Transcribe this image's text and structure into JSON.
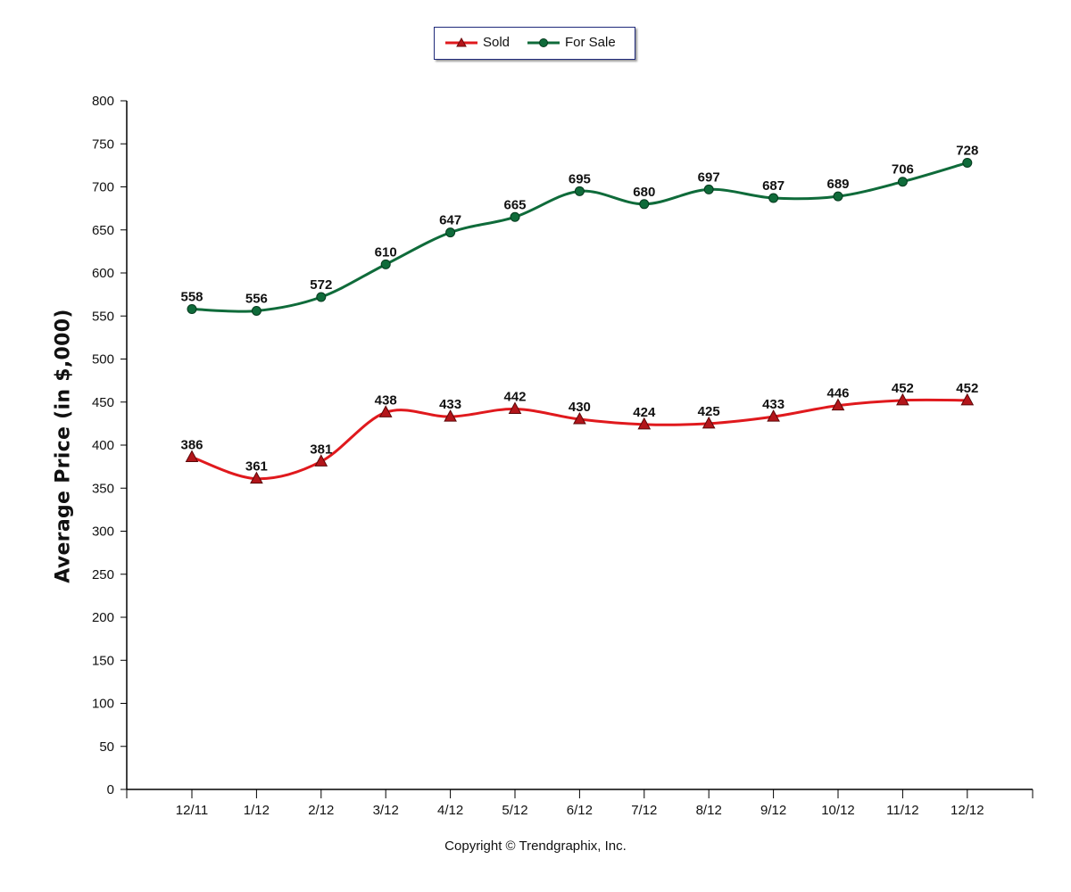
{
  "chart_data": {
    "type": "line",
    "categories": [
      "12/11",
      "1/12",
      "2/12",
      "3/12",
      "4/12",
      "5/12",
      "6/12",
      "7/12",
      "8/12",
      "9/12",
      "10/12",
      "11/12",
      "12/12"
    ],
    "series": [
      {
        "name": "Sold",
        "color": "#e0191d",
        "marker": "triangle",
        "values": [
          386,
          361,
          381,
          438,
          433,
          442,
          430,
          424,
          425,
          433,
          446,
          452,
          452
        ]
      },
      {
        "name": "For Sale",
        "color": "#0f6b3a",
        "marker": "circle",
        "values": [
          558,
          556,
          572,
          610,
          647,
          665,
          695,
          680,
          697,
          687,
          689,
          706,
          728
        ]
      }
    ],
    "ylabel": "Average Price (in $,000)",
    "xlabel": "",
    "ylim": [
      0,
      800
    ],
    "yticks": [
      0,
      50,
      100,
      150,
      200,
      250,
      300,
      350,
      400,
      450,
      500,
      550,
      600,
      650,
      700,
      750,
      800
    ],
    "grid": false,
    "legend_position": "top-center",
    "data_labels": true
  },
  "footer": {
    "copyright": "Copyright © Trendgraphix, Inc."
  }
}
